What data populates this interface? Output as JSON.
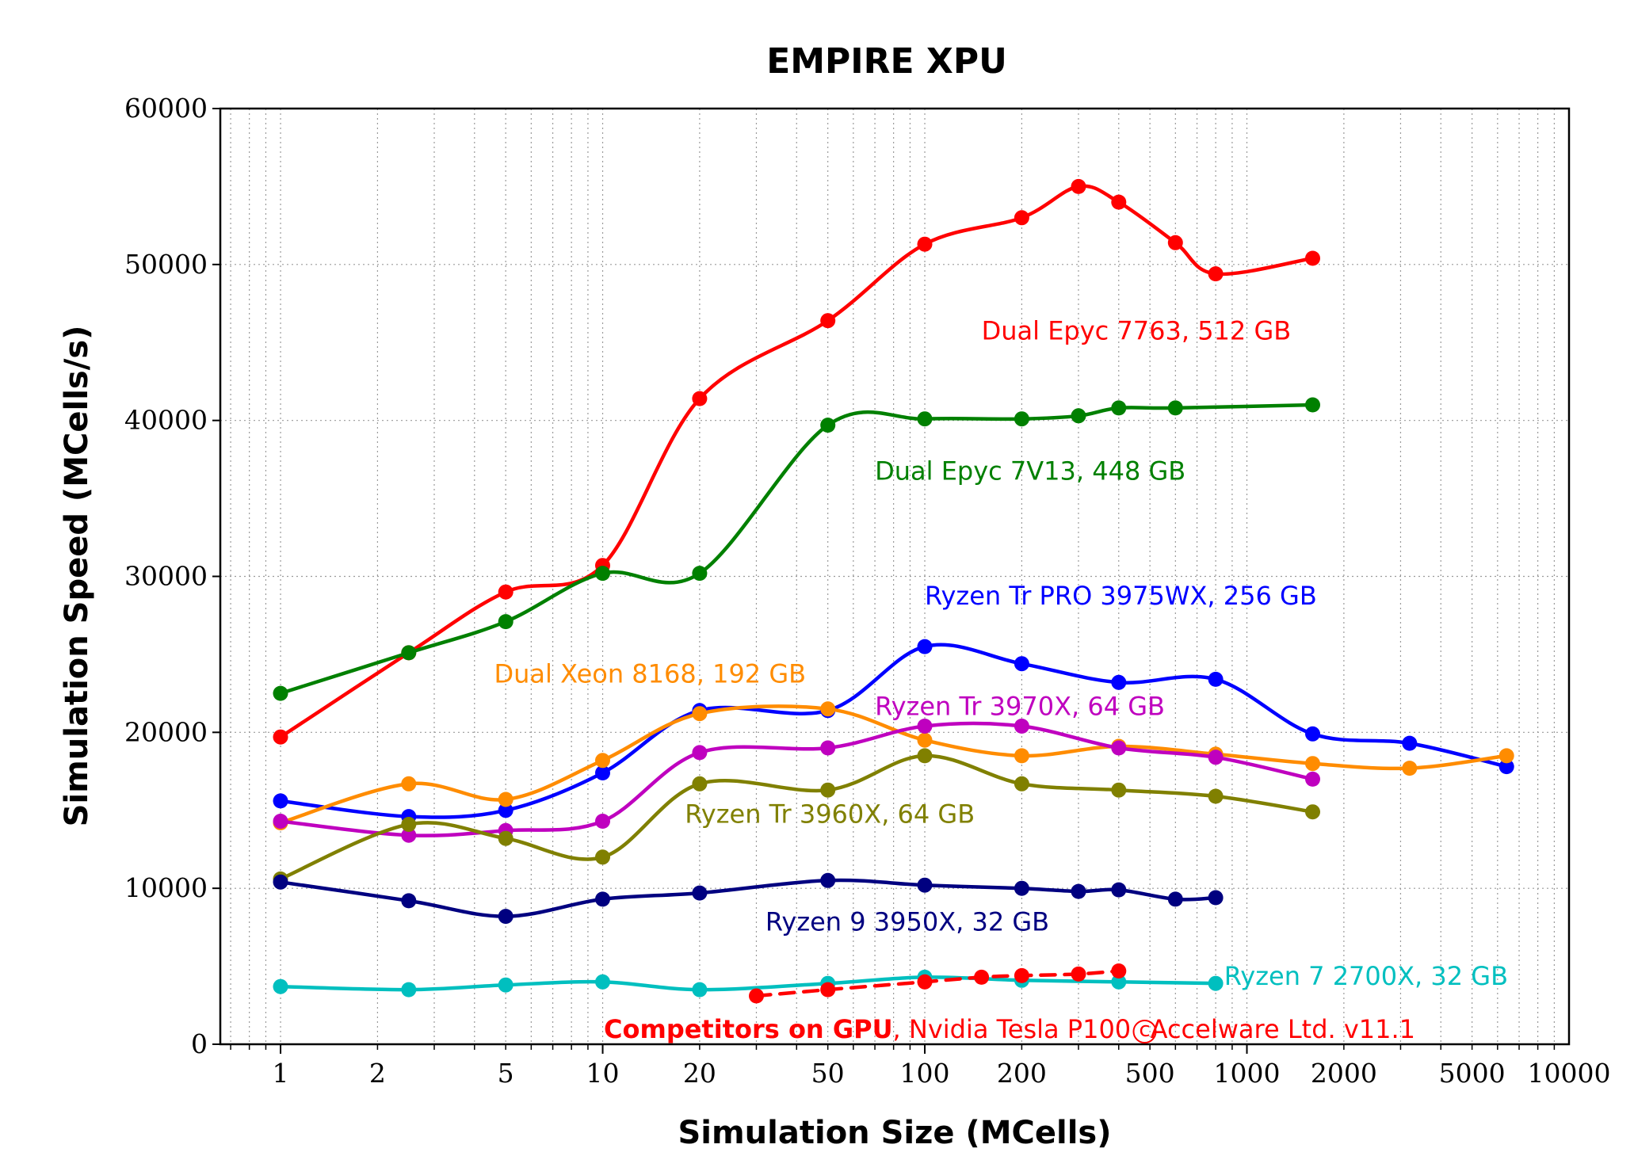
{
  "chart_data": {
    "type": "line",
    "title": "EMPIRE XPU",
    "xlabel": "Simulation Size (MCells)",
    "ylabel": "Simulation Speed (MCells/s)",
    "xscale": "log",
    "xlim": [
      0.65,
      10000
    ],
    "ylim": [
      0,
      60000
    ],
    "grid": true,
    "x_ticks": [
      1,
      2,
      5,
      10,
      20,
      50,
      100,
      200,
      500,
      1000,
      2000,
      5000,
      10000
    ],
    "x_tick_labels": [
      "1",
      "2",
      "5",
      "10",
      "20",
      "50",
      "100",
      "200",
      "500",
      "1000",
      "2000",
      "5000",
      "10000"
    ],
    "y_ticks": [
      0,
      10000,
      20000,
      30000,
      40000,
      50000,
      60000
    ],
    "y_tick_labels": [
      "0",
      "10000",
      "20000",
      "30000",
      "40000",
      "50000",
      "60000"
    ],
    "series": [
      {
        "name": "Dual Epyc 7763, 512 GB",
        "color": "#ff0000",
        "style": "solid",
        "x": [
          1,
          2.5,
          5,
          10,
          20,
          50,
          100,
          200,
          300,
          400,
          600,
          800,
          1600
        ],
        "y": [
          19700,
          25100,
          29000,
          30700,
          41400,
          46400,
          51300,
          53000,
          55000,
          54000,
          51400,
          49400,
          50400
        ]
      },
      {
        "name": "Dual Epyc 7V13, 448 GB",
        "color": "#008000",
        "style": "solid",
        "x": [
          1,
          2.5,
          5,
          10,
          20,
          50,
          100,
          200,
          300,
          400,
          600,
          1600
        ],
        "y": [
          22500,
          25100,
          27100,
          30200,
          30200,
          39700,
          40100,
          40100,
          40300,
          40800,
          40800,
          41000
        ]
      },
      {
        "name": "Ryzen Tr PRO 3975WX, 256 GB",
        "color": "#0000ff",
        "style": "solid",
        "x": [
          1,
          2.5,
          5,
          10,
          20,
          50,
          100,
          200,
          400,
          800,
          1600,
          3200,
          6400
        ],
        "y": [
          15600,
          14600,
          15000,
          17400,
          21400,
          21400,
          25500,
          24400,
          23200,
          23400,
          19900,
          19300,
          17800
        ]
      },
      {
        "name": "Dual Xeon 8168, 192 GB",
        "color": "#ff8c00",
        "style": "solid",
        "x": [
          1,
          2.5,
          5,
          10,
          20,
          50,
          100,
          200,
          400,
          800,
          1600,
          3200,
          6400
        ],
        "y": [
          14200,
          16700,
          15700,
          18200,
          21200,
          21500,
          19500,
          18500,
          19100,
          18600,
          18000,
          17700,
          18500
        ]
      },
      {
        "name": "Ryzen Tr 3970X, 64 GB",
        "color": "#bf00bf",
        "style": "solid",
        "x": [
          1,
          2.5,
          5,
          10,
          20,
          50,
          100,
          200,
          400,
          800,
          1600
        ],
        "y": [
          14300,
          13400,
          13700,
          14300,
          18700,
          19000,
          20400,
          20400,
          19000,
          18400,
          17000
        ]
      },
      {
        "name": "Ryzen Tr 3960X, 64 GB",
        "color": "#808000",
        "style": "solid",
        "x": [
          1,
          2.5,
          5,
          10,
          20,
          50,
          100,
          200,
          400,
          800,
          1600
        ],
        "y": [
          10600,
          14100,
          13200,
          12000,
          16700,
          16300,
          18500,
          16700,
          16300,
          15900,
          14900
        ]
      },
      {
        "name": "Ryzen 9 3950X, 32 GB",
        "color": "#000080",
        "style": "solid",
        "x": [
          1,
          2.5,
          5,
          10,
          20,
          50,
          100,
          200,
          300,
          400,
          600,
          800
        ],
        "y": [
          10400,
          9200,
          8200,
          9300,
          9700,
          10500,
          10200,
          10000,
          9800,
          9900,
          9300,
          9400
        ]
      },
      {
        "name": "Ryzen 7 2700X, 32 GB",
        "color": "#00bfbf",
        "style": "solid",
        "x": [
          1,
          2.5,
          5,
          10,
          20,
          50,
          100,
          200,
          400,
          800
        ],
        "y": [
          3700,
          3500,
          3800,
          4000,
          3500,
          3900,
          4300,
          4100,
          4000,
          3900
        ]
      },
      {
        "name": "Competitors on GPU",
        "color": "#ff0000",
        "style": "dashed",
        "x": [
          30,
          50,
          100,
          150,
          200,
          300,
          400
        ],
        "y": [
          3100,
          3500,
          4000,
          4300,
          4400,
          4500,
          4700
        ]
      }
    ],
    "annotations": [
      {
        "text": "Dual Epyc 7763, 512 GB",
        "color": "#ff0000",
        "x": 150,
        "y": 45200
      },
      {
        "text": "Dual Epyc 7V13, 448 GB",
        "color": "#008000",
        "x": 70,
        "y": 36200
      },
      {
        "text": "Ryzen Tr PRO 3975WX, 256 GB",
        "color": "#0000ff",
        "x": 100,
        "y": 28200
      },
      {
        "text": "Dual Xeon 8168, 192 GB",
        "color": "#ff8c00",
        "x": 4.6,
        "y": 23200
      },
      {
        "text": "Ryzen Tr 3970X, 64 GB",
        "color": "#bf00bf",
        "x": 70,
        "y": 21100
      },
      {
        "text": "Ryzen Tr 3960X, 64 GB",
        "color": "#808000",
        "x": 18,
        "y": 14200
      },
      {
        "text": "Ryzen 9 3950X, 32 GB",
        "color": "#000080",
        "x": 32,
        "y": 7300
      },
      {
        "text": "Ryzen 7 2700X, 32 GB",
        "color": "#00bfbf",
        "x": 850,
        "y": 3800
      }
    ],
    "footnote": {
      "bold_text": "Competitors on GPU",
      "text": ", Nvidia Tesla P100 ",
      "copyright_symbol": "c",
      "text2": "Accelware Ltd. v11.1",
      "color": "#ff0000"
    }
  }
}
